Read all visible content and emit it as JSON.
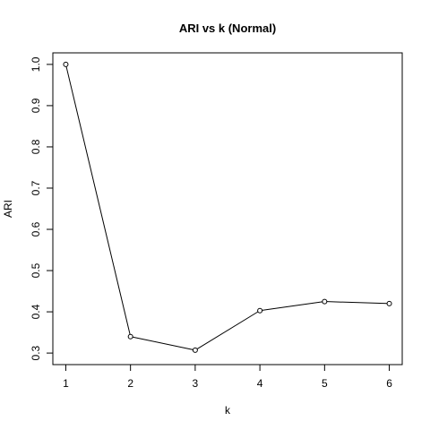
{
  "chart_data": {
    "type": "line",
    "title": "ARI vs k (Normal)",
    "xlabel": "k",
    "ylabel": "ARI",
    "x": [
      1,
      2,
      3,
      4,
      5,
      6
    ],
    "series": [
      {
        "values": [
          1.0,
          0.34,
          0.307,
          0.403,
          0.425,
          0.42
        ]
      }
    ],
    "xticks": [
      "1",
      "2",
      "3",
      "4",
      "5",
      "6"
    ],
    "yticks": [
      "0.3",
      "0.4",
      "0.5",
      "0.6",
      "0.7",
      "0.8",
      "0.9",
      "1.0"
    ],
    "xlim": [
      0.8,
      6.2
    ],
    "ylim": [
      0.272,
      1.028
    ],
    "markers": "open-circle",
    "line_color": "#000000",
    "grid": false,
    "legend": "none"
  }
}
